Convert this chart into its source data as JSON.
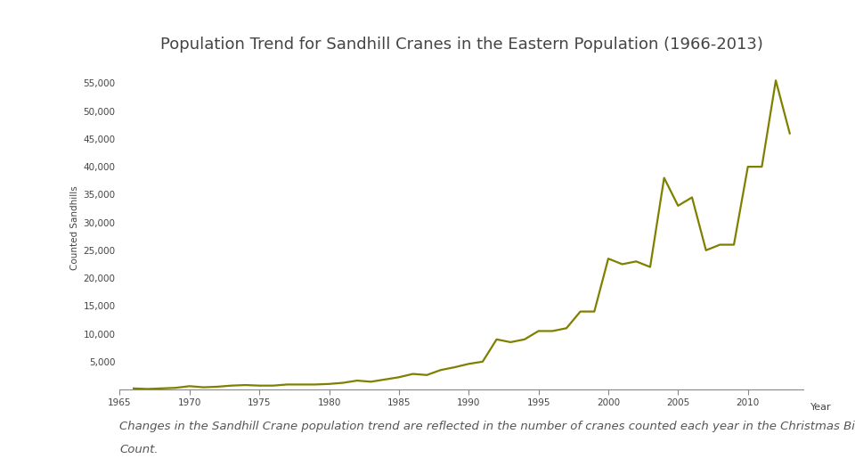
{
  "title": "Population Trend for Sandhill Cranes in the Eastern Population (1966-2013)",
  "xlabel": "Year",
  "ylabel": "Counted Sandhills",
  "line_color": "#7f8000",
  "background_color": "#ffffff",
  "caption_line1": "Changes in the Sandhill Crane population trend are reflected in the number of cranes counted each year in the Christmas Bird",
  "caption_line2": "Count.",
  "years": [
    1966,
    1967,
    1968,
    1969,
    1970,
    1971,
    1972,
    1973,
    1974,
    1975,
    1976,
    1977,
    1978,
    1979,
    1980,
    1981,
    1982,
    1983,
    1984,
    1985,
    1986,
    1987,
    1988,
    1989,
    1990,
    1991,
    1992,
    1993,
    1994,
    1995,
    1996,
    1997,
    1998,
    1999,
    2000,
    2001,
    2002,
    2003,
    2004,
    2005,
    2006,
    2007,
    2008,
    2009,
    2010,
    2011,
    2012,
    2013
  ],
  "counts": [
    200,
    100,
    200,
    300,
    600,
    400,
    500,
    700,
    800,
    700,
    700,
    900,
    900,
    900,
    1000,
    1200,
    1600,
    1400,
    1800,
    2200,
    2800,
    2600,
    3500,
    4000,
    4600,
    5000,
    9000,
    8500,
    9000,
    10500,
    10500,
    11000,
    14000,
    14000,
    23500,
    22500,
    23000,
    22000,
    38000,
    33000,
    34500,
    25000,
    26000,
    26000,
    40000,
    40000,
    55500,
    46000
  ],
  "ylim": [
    0,
    58000
  ],
  "xlim": [
    1965,
    2014
  ],
  "yticks": [
    5000,
    10000,
    15000,
    20000,
    25000,
    30000,
    35000,
    40000,
    45000,
    50000,
    55000
  ],
  "xticks": [
    1965,
    1970,
    1975,
    1980,
    1985,
    1990,
    1995,
    2000,
    2005,
    2010
  ],
  "line_width": 1.6,
  "title_fontsize": 13,
  "tick_fontsize": 7.5,
  "ylabel_fontsize": 7.5,
  "xlabel_fontsize": 8,
  "caption_fontsize": 9.5,
  "title_color": "#444444",
  "tick_color": "#444444",
  "caption_color": "#555555",
  "spine_color": "#888888"
}
